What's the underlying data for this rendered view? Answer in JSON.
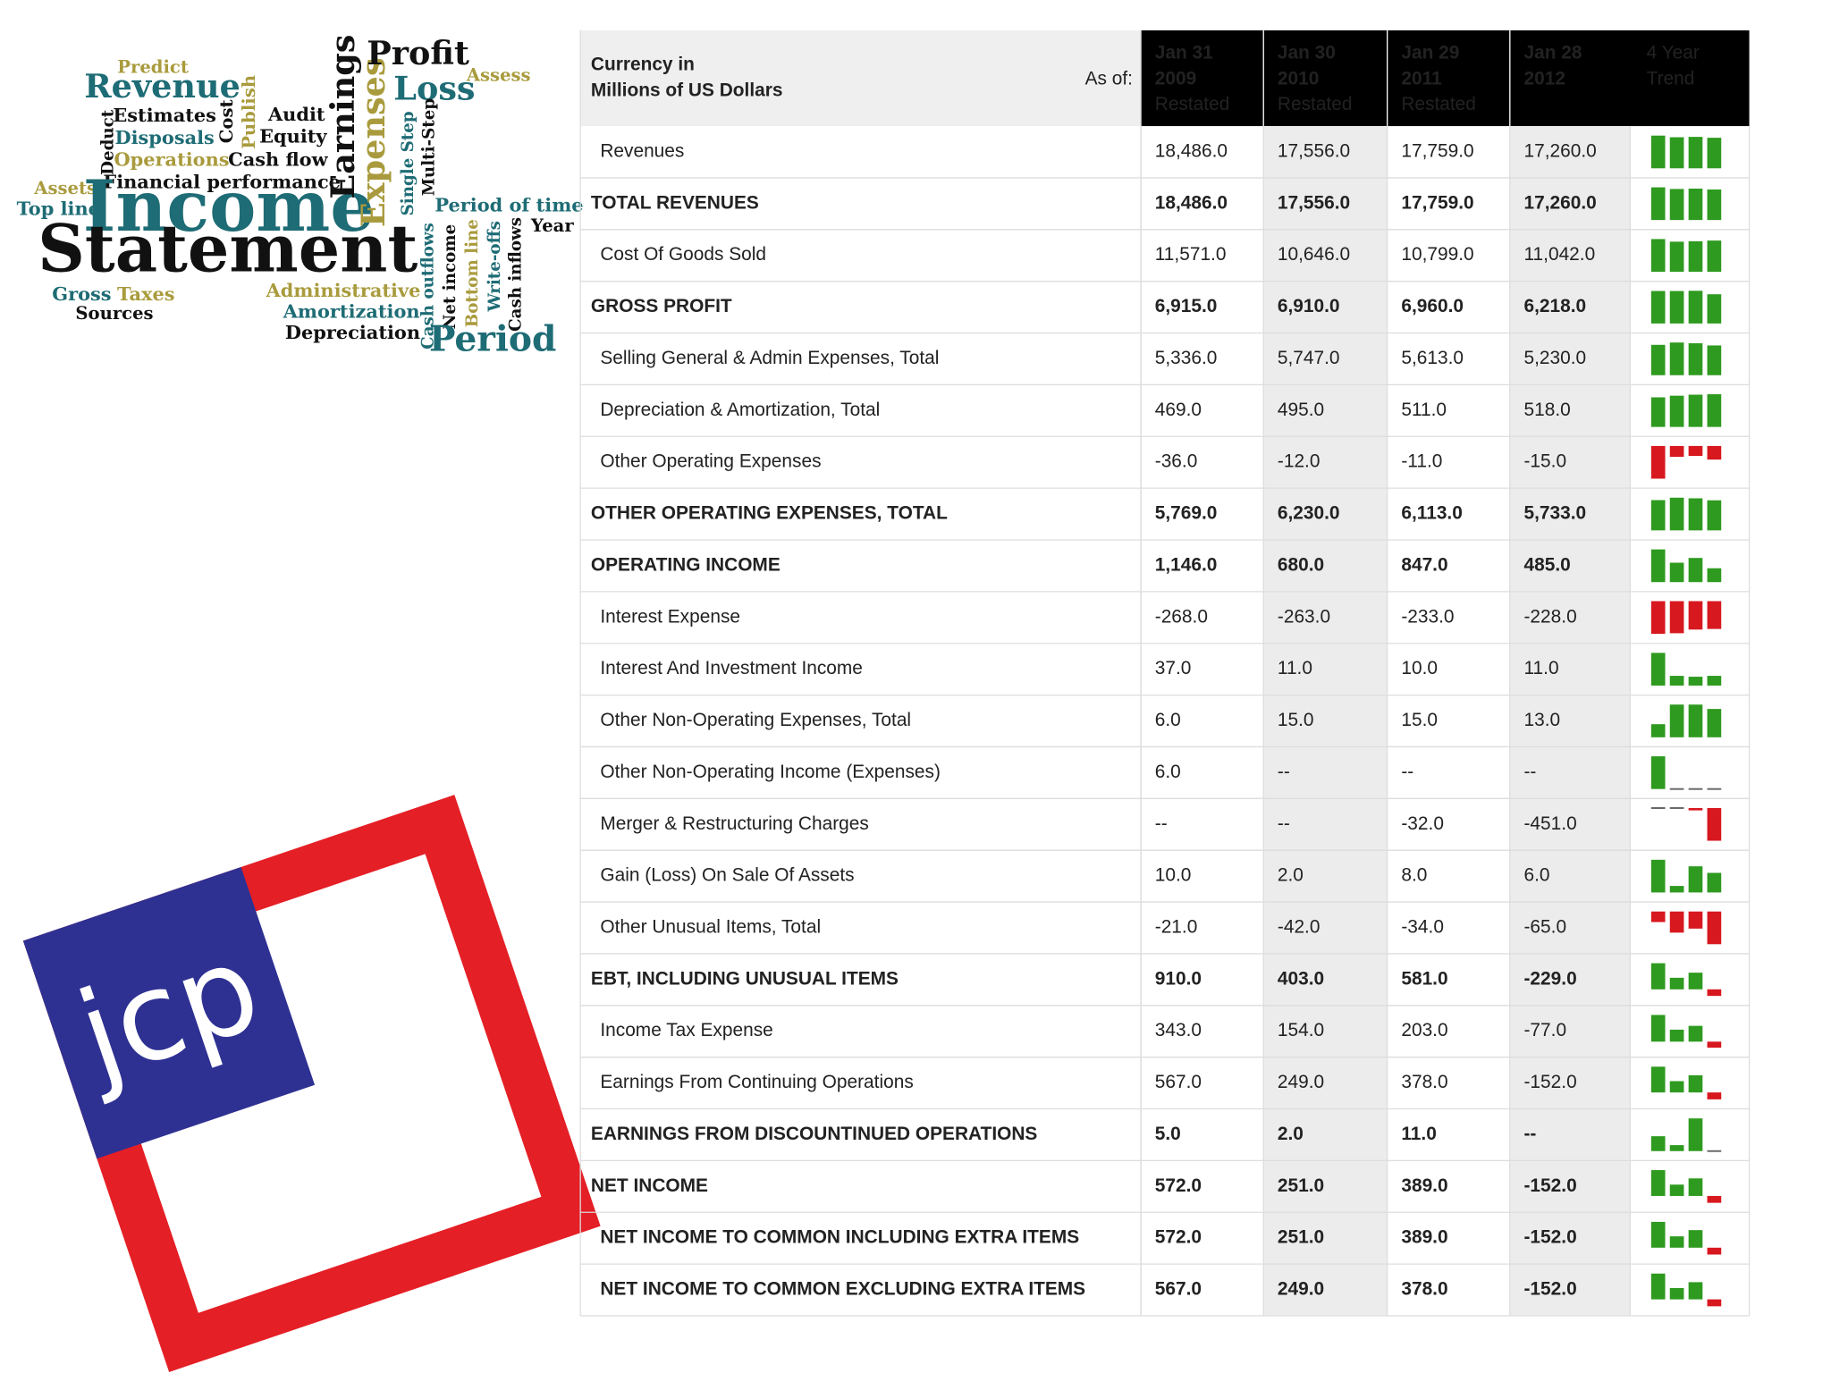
{
  "wordcloud": {
    "words": [
      "Predict",
      "Revenue",
      "Estimates",
      "Deduct",
      "Disposals",
      "Cost",
      "Publish",
      "Audit",
      "Equity",
      "Operations",
      "Cash flow",
      "Financial performance",
      "Assets",
      "Top line",
      "Income",
      "Statement",
      "Earnings",
      "Expenses",
      "Profit",
      "Loss",
      "Assess",
      "Single Step",
      "Multi-Step",
      "Period of time",
      "Year",
      "Cash outflows",
      "Net income",
      "Bottom line",
      "Write-offs",
      "Cash inflows",
      "Period",
      "Gross",
      "Taxes",
      "Sources",
      "Administrative",
      "Amortization",
      "Depreciation"
    ]
  },
  "logo": {
    "text": "jcp"
  },
  "table": {
    "caption": [
      "Currency in",
      "Millions of US Dollars"
    ],
    "as_of": "As of:",
    "columns": [
      {
        "date": [
          "Jan 31",
          "2009"
        ],
        "note": "Restated"
      },
      {
        "date": [
          "Jan 30",
          "2010"
        ],
        "note": "Restated"
      },
      {
        "date": [
          "Jan 29",
          "2011"
        ],
        "note": "Restated"
      },
      {
        "date": [
          "Jan 28",
          "2012"
        ]
      }
    ],
    "trend_header": [
      "4 Year",
      "Trend"
    ],
    "rows": [
      {
        "label": "Revenues",
        "cells": [
          "18,486.0",
          "17,556.0",
          "17,759.0",
          "17,260.0"
        ],
        "indent": true
      },
      {
        "label": "TOTAL REVENUES",
        "cells": [
          "18,486.0",
          "17,556.0",
          "17,759.0",
          "17,260.0"
        ],
        "bold": true
      },
      {
        "label": "Cost Of Goods Sold",
        "cells": [
          "11,571.0",
          "10,646.0",
          "10,799.0",
          "11,042.0"
        ],
        "indent": true
      },
      {
        "label": "GROSS PROFIT",
        "cells": [
          "6,915.0",
          "6,910.0",
          "6,960.0",
          "6,218.0"
        ],
        "bold": true
      },
      {
        "label": "Selling General & Admin Expenses, Total",
        "cells": [
          "5,336.0",
          "5,747.0",
          "5,613.0",
          "5,230.0"
        ],
        "indent": true
      },
      {
        "label": "Depreciation & Amortization, Total",
        "cells": [
          "469.0",
          "495.0",
          "511.0",
          "518.0"
        ],
        "indent": true
      },
      {
        "label": "Other Operating Expenses",
        "cells": [
          "-36.0",
          "-12.0",
          "-11.0",
          "-15.0"
        ],
        "indent": true
      },
      {
        "label": "OTHER OPERATING EXPENSES, TOTAL",
        "cells": [
          "5,769.0",
          "6,230.0",
          "6,113.0",
          "5,733.0"
        ],
        "bold": true
      },
      {
        "label": "OPERATING INCOME",
        "cells": [
          "1,146.0",
          "680.0",
          "847.0",
          "485.0"
        ],
        "bold": true
      },
      {
        "label": "Interest Expense",
        "cells": [
          "-268.0",
          "-263.0",
          "-233.0",
          "-228.0"
        ],
        "indent": true
      },
      {
        "label": "Interest And Investment Income",
        "cells": [
          "37.0",
          "11.0",
          "10.0",
          "11.0"
        ],
        "indent": true
      },
      {
        "label": "Other Non-Operating Expenses, Total",
        "cells": [
          "6.0",
          "15.0",
          "15.0",
          "13.0"
        ],
        "indent": true
      },
      {
        "label": "Other Non-Operating Income (Expenses)",
        "cells": [
          "6.0",
          "--",
          "--",
          "--"
        ],
        "indent": true
      },
      {
        "label": "Merger & Restructuring Charges",
        "cells": [
          "--",
          "--",
          "-32.0",
          "-451.0"
        ],
        "indent": true
      },
      {
        "label": "Gain (Loss) On Sale Of Assets",
        "cells": [
          "10.0",
          "2.0",
          "8.0",
          "6.0"
        ],
        "indent": true
      },
      {
        "label": "Other Unusual Items, Total",
        "cells": [
          "-21.0",
          "-42.0",
          "-34.0",
          "-65.0"
        ],
        "indent": true
      },
      {
        "label": "EBT, INCLUDING UNUSUAL ITEMS",
        "cells": [
          "910.0",
          "403.0",
          "581.0",
          "-229.0"
        ],
        "bold": true
      },
      {
        "label": "Income Tax Expense",
        "cells": [
          "343.0",
          "154.0",
          "203.0",
          "-77.0"
        ],
        "indent": true
      },
      {
        "label": "Earnings From Continuing Operations",
        "cells": [
          "567.0",
          "249.0",
          "378.0",
          "-152.0"
        ],
        "indent": true
      },
      {
        "label": "EARNINGS FROM DISCOUNTINUED OPERATIONS",
        "cells": [
          "5.0",
          "2.0",
          "11.0",
          "--"
        ],
        "bold": true
      },
      {
        "label": "NET INCOME",
        "cells": [
          "572.0",
          "251.0",
          "389.0",
          "-152.0"
        ],
        "bold": true
      },
      {
        "label": "NET INCOME TO COMMON INCLUDING EXTRA ITEMS",
        "cells": [
          "572.0",
          "251.0",
          "389.0",
          "-152.0"
        ],
        "bold": true,
        "indent": true
      },
      {
        "label": "NET INCOME TO COMMON EXCLUDING EXTRA ITEMS",
        "cells": [
          "567.0",
          "249.0",
          "378.0",
          "-152.0"
        ],
        "bold": true,
        "indent": true
      }
    ]
  }
}
